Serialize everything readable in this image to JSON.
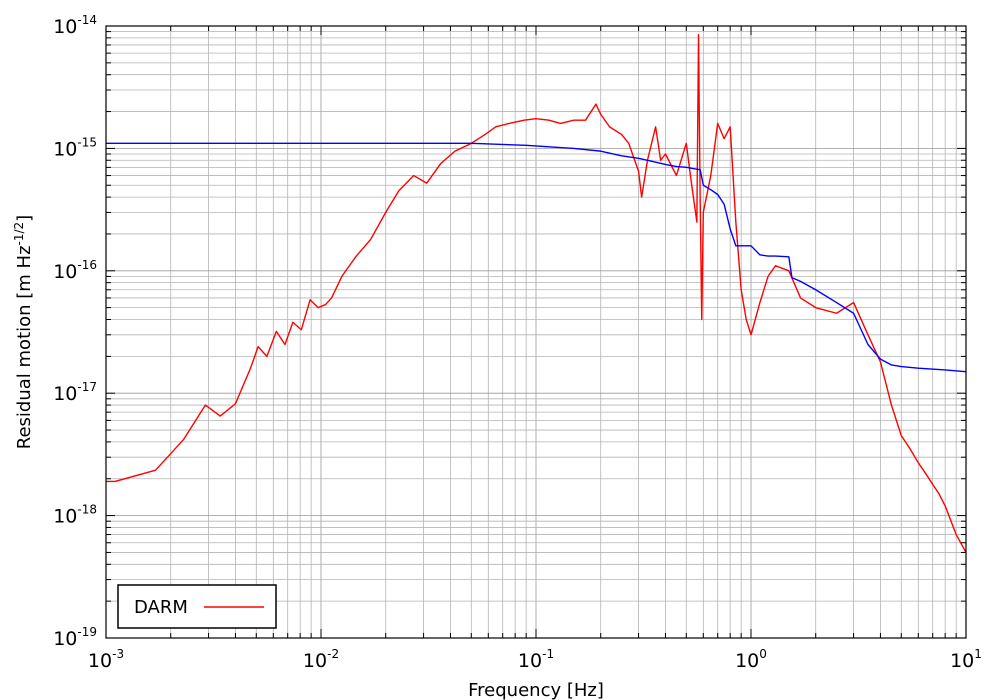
{
  "chart_data": {
    "type": "line",
    "title": "",
    "xlabel": "Frequency [Hz]",
    "ylabel": "Residual motion [m Hz<sup>-1/2</sup>]",
    "xscale": "log",
    "yscale": "log",
    "xlim": [
      0.001,
      10
    ],
    "ylim": [
      1e-19,
      1e-14
    ],
    "grid": true,
    "legend_position": "bottom-left",
    "x_ticks": [
      {
        "base": "10",
        "exp": "-3"
      },
      {
        "base": "10",
        "exp": "-2"
      },
      {
        "base": "10",
        "exp": "-1"
      },
      {
        "base": "10",
        "exp": "0"
      },
      {
        "base": "10",
        "exp": "1"
      }
    ],
    "y_ticks": [
      {
        "base": "10",
        "exp": "-19"
      },
      {
        "base": "10",
        "exp": "-18"
      },
      {
        "base": "10",
        "exp": "-17"
      },
      {
        "base": "10",
        "exp": "-16"
      },
      {
        "base": "10",
        "exp": "-15"
      },
      {
        "base": "10",
        "exp": "-14"
      }
    ],
    "series": [
      {
        "name": "DARM",
        "color": "#ff0000",
        "x": [
          0.001,
          0.0011,
          0.0017,
          0.0023,
          0.0029,
          0.0034,
          0.004,
          0.0047,
          0.0051,
          0.0056,
          0.0062,
          0.0068,
          0.0074,
          0.0081,
          0.0089,
          0.0097,
          0.0105,
          0.0112,
          0.0125,
          0.0145,
          0.017,
          0.02,
          0.023,
          0.027,
          0.031,
          0.036,
          0.042,
          0.05,
          0.058,
          0.065,
          0.075,
          0.088,
          0.1,
          0.115,
          0.13,
          0.15,
          0.17,
          0.19,
          0.2,
          0.22,
          0.25,
          0.27,
          0.3,
          0.31,
          0.33,
          0.36,
          0.38,
          0.4,
          0.45,
          0.5,
          0.53,
          0.56,
          0.57,
          0.58,
          0.59,
          0.6,
          0.65,
          0.7,
          0.75,
          0.8,
          0.85,
          0.9,
          0.95,
          1.0,
          1.1,
          1.2,
          1.3,
          1.5,
          1.7,
          2.0,
          2.5,
          3.0,
          3.5,
          4.0,
          4.5,
          5.0,
          5.5,
          6.0,
          6.5,
          7.0,
          7.5,
          8.0,
          9.0,
          10.0
        ],
        "y": [
          1.9e-18,
          1.9e-18,
          2.35e-18,
          4.2e-18,
          8e-18,
          6.5e-18,
          8.2e-18,
          1.6e-17,
          2.4e-17,
          2e-17,
          3.2e-17,
          2.5e-17,
          3.8e-17,
          3.3e-17,
          5.8e-17,
          5e-17,
          5.3e-17,
          6e-17,
          9e-17,
          1.3e-16,
          1.8e-16,
          3e-16,
          4.5e-16,
          6e-16,
          5.2e-16,
          7.5e-16,
          9.5e-16,
          1.1e-15,
          1.3e-15,
          1.5e-15,
          1.6e-15,
          1.7e-15,
          1.75e-15,
          1.7e-15,
          1.6e-15,
          1.7e-15,
          1.7e-15,
          2.3e-15,
          1.9e-15,
          1.5e-15,
          1.3e-15,
          1.1e-15,
          6.5e-16,
          4e-16,
          8e-16,
          1.5e-15,
          8e-16,
          9e-16,
          6e-16,
          1.1e-15,
          5e-16,
          2.5e-16,
          8.5e-15,
          4e-16,
          4e-17,
          3e-16,
          6e-16,
          1.6e-15,
          1.2e-15,
          1.5e-15,
          2.5e-16,
          7e-17,
          4e-17,
          3e-17,
          5.5e-17,
          9e-17,
          1.1e-16,
          1e-16,
          6e-17,
          5e-17,
          4.5e-17,
          5.5e-17,
          3e-17,
          1.8e-17,
          8e-18,
          4.5e-18,
          3.5e-18,
          2.7e-18,
          2.2e-18,
          1.8e-18,
          1.5e-18,
          1.2e-18,
          7e-19,
          5e-19
        ]
      },
      {
        "color": "#0000ff",
        "x": [
          0.001,
          0.01,
          0.05,
          0.09,
          0.15,
          0.2,
          0.25,
          0.3,
          0.35,
          0.4,
          0.45,
          0.5,
          0.55,
          0.58,
          0.6,
          0.65,
          0.7,
          0.75,
          0.8,
          0.85,
          1.0,
          1.1,
          1.2,
          1.3,
          1.5,
          1.55,
          1.7,
          2.0,
          2.5,
          3.0,
          3.5,
          4.0,
          4.5,
          5.0,
          6.0,
          8.0,
          10.0
        ],
        "y": [
          1.1e-15,
          1.1e-15,
          1.1e-15,
          1.06e-15,
          1e-15,
          9.5e-16,
          8.7e-16,
          8.3e-16,
          7.8e-16,
          7.4e-16,
          7.1e-16,
          7e-16,
          6.8e-16,
          6.7e-16,
          5e-16,
          4.6e-16,
          4.2e-16,
          3.5e-16,
          2.2e-16,
          1.6e-16,
          1.6e-16,
          1.35e-16,
          1.32e-16,
          1.32e-16,
          1.3e-16,
          8.8e-17,
          8.2e-17,
          7e-17,
          5.5e-17,
          4.5e-17,
          2.5e-17,
          1.9e-17,
          1.7e-17,
          1.65e-17,
          1.6e-17,
          1.55e-17,
          1.5e-17
        ]
      }
    ]
  }
}
